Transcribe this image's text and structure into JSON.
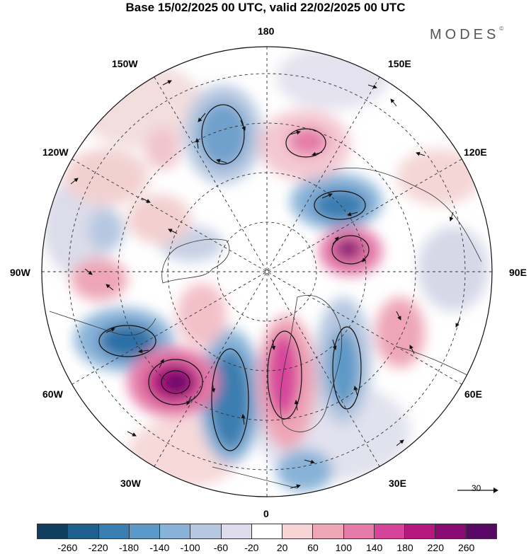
{
  "title": "Base 15/02/2025 00 UTC, valid 22/02/2025 00 UTC",
  "logo": "MODES",
  "logo_mark": "©",
  "longitude_labels": {
    "n180": "180",
    "w150": "150W",
    "e150": "150E",
    "w120": "120W",
    "e120": "120E",
    "w90": "90W",
    "e90": "90E",
    "w60": "60W",
    "e60": "60E",
    "w30": "30W",
    "e30": "30E",
    "zero": "0"
  },
  "reference_vector": {
    "value": "30"
  },
  "colorbar": {
    "colors": [
      "#0f3d5e",
      "#1f5f8b",
      "#3a7db0",
      "#5d99c6",
      "#88b2d8",
      "#b6c7e0",
      "#dcdcea",
      "#ffffff",
      "#f7d4d4",
      "#eea6b6",
      "#e57aa8",
      "#d6449a",
      "#b3197f",
      "#8a0a73",
      "#5a0866"
    ],
    "ticks": [
      "-260",
      "-220",
      "-180",
      "-140",
      "-100",
      "-60",
      "-20",
      "20",
      "60",
      "100",
      "140",
      "180",
      "220",
      "260"
    ]
  }
}
